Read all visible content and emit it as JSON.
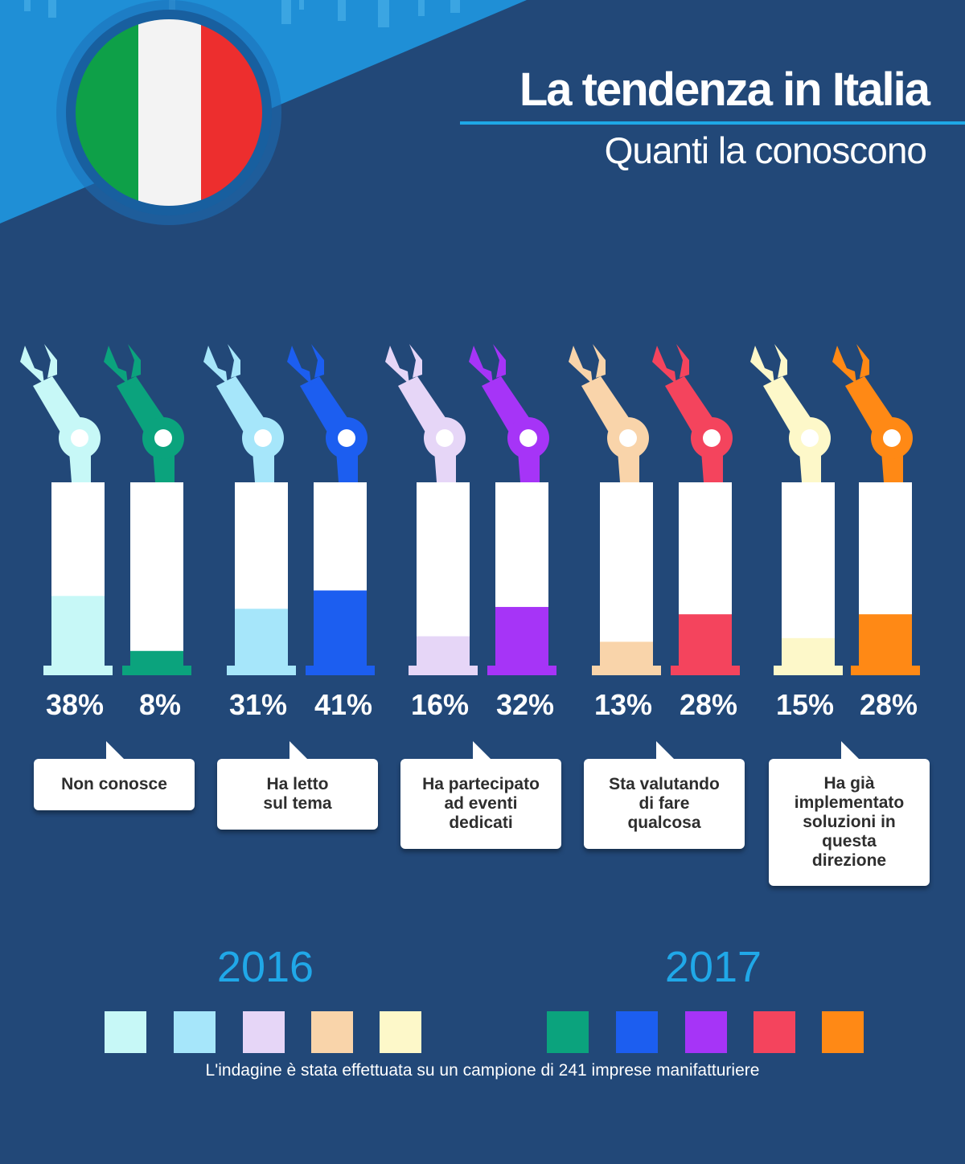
{
  "header": {
    "title": "La tendenza in Italia",
    "subtitle": "Quanti la conoscono"
  },
  "chart_data": {
    "type": "bar",
    "title": "La tendenza in Italia",
    "subtitle": "Quanti la conoscono",
    "categories": [
      "Non conosce",
      "Ha letto sul tema",
      "Ha partecipato ad eventi dedicati",
      "Sta valutando di fare qualcosa",
      "Ha già implementato soluzioni in questa direzione"
    ],
    "series": [
      {
        "name": "2016",
        "values": [
          38,
          31,
          16,
          13,
          15
        ],
        "labels": [
          "38%",
          "31%",
          "16%",
          "13%",
          "15%"
        ],
        "colors": [
          "#c7f8f7",
          "#a6e6fa",
          "#e6d6f7",
          "#f9d4aa",
          "#fdf8c9"
        ]
      },
      {
        "name": "2017",
        "values": [
          8,
          41,
          32,
          28,
          28
        ],
        "labels": [
          "8%",
          "41%",
          "32%",
          "28%",
          "28%"
        ],
        "colors": [
          "#0ba37d",
          "#1c5ef0",
          "#a634f7",
          "#f4445d",
          "#ff8915"
        ]
      }
    ],
    "ylim": [
      0,
      100
    ],
    "unit": "%",
    "legend": "bottom"
  },
  "bubbles": [
    {
      "text": "Non conosce"
    },
    {
      "text": "Ha letto\nsul tema"
    },
    {
      "text": "Ha partecipato\nad eventi\ndedicati"
    },
    {
      "text": "Sta valutando\ndi fare\nqualcosa"
    },
    {
      "text": "Ha già\nimplementato\nsoluzioni in\nquesta\ndirezione"
    }
  ],
  "legend": {
    "year_2016": "2016",
    "year_2017": "2017"
  },
  "footnote": "L'indagine è stata effettuata su un campione di 241 imprese manifatturiere",
  "colors": {
    "background": "#224878",
    "accent": "#1ea7e6",
    "flag_green": "#0ea048",
    "flag_white": "#f3f3f3",
    "flag_red": "#ed2e2e"
  }
}
